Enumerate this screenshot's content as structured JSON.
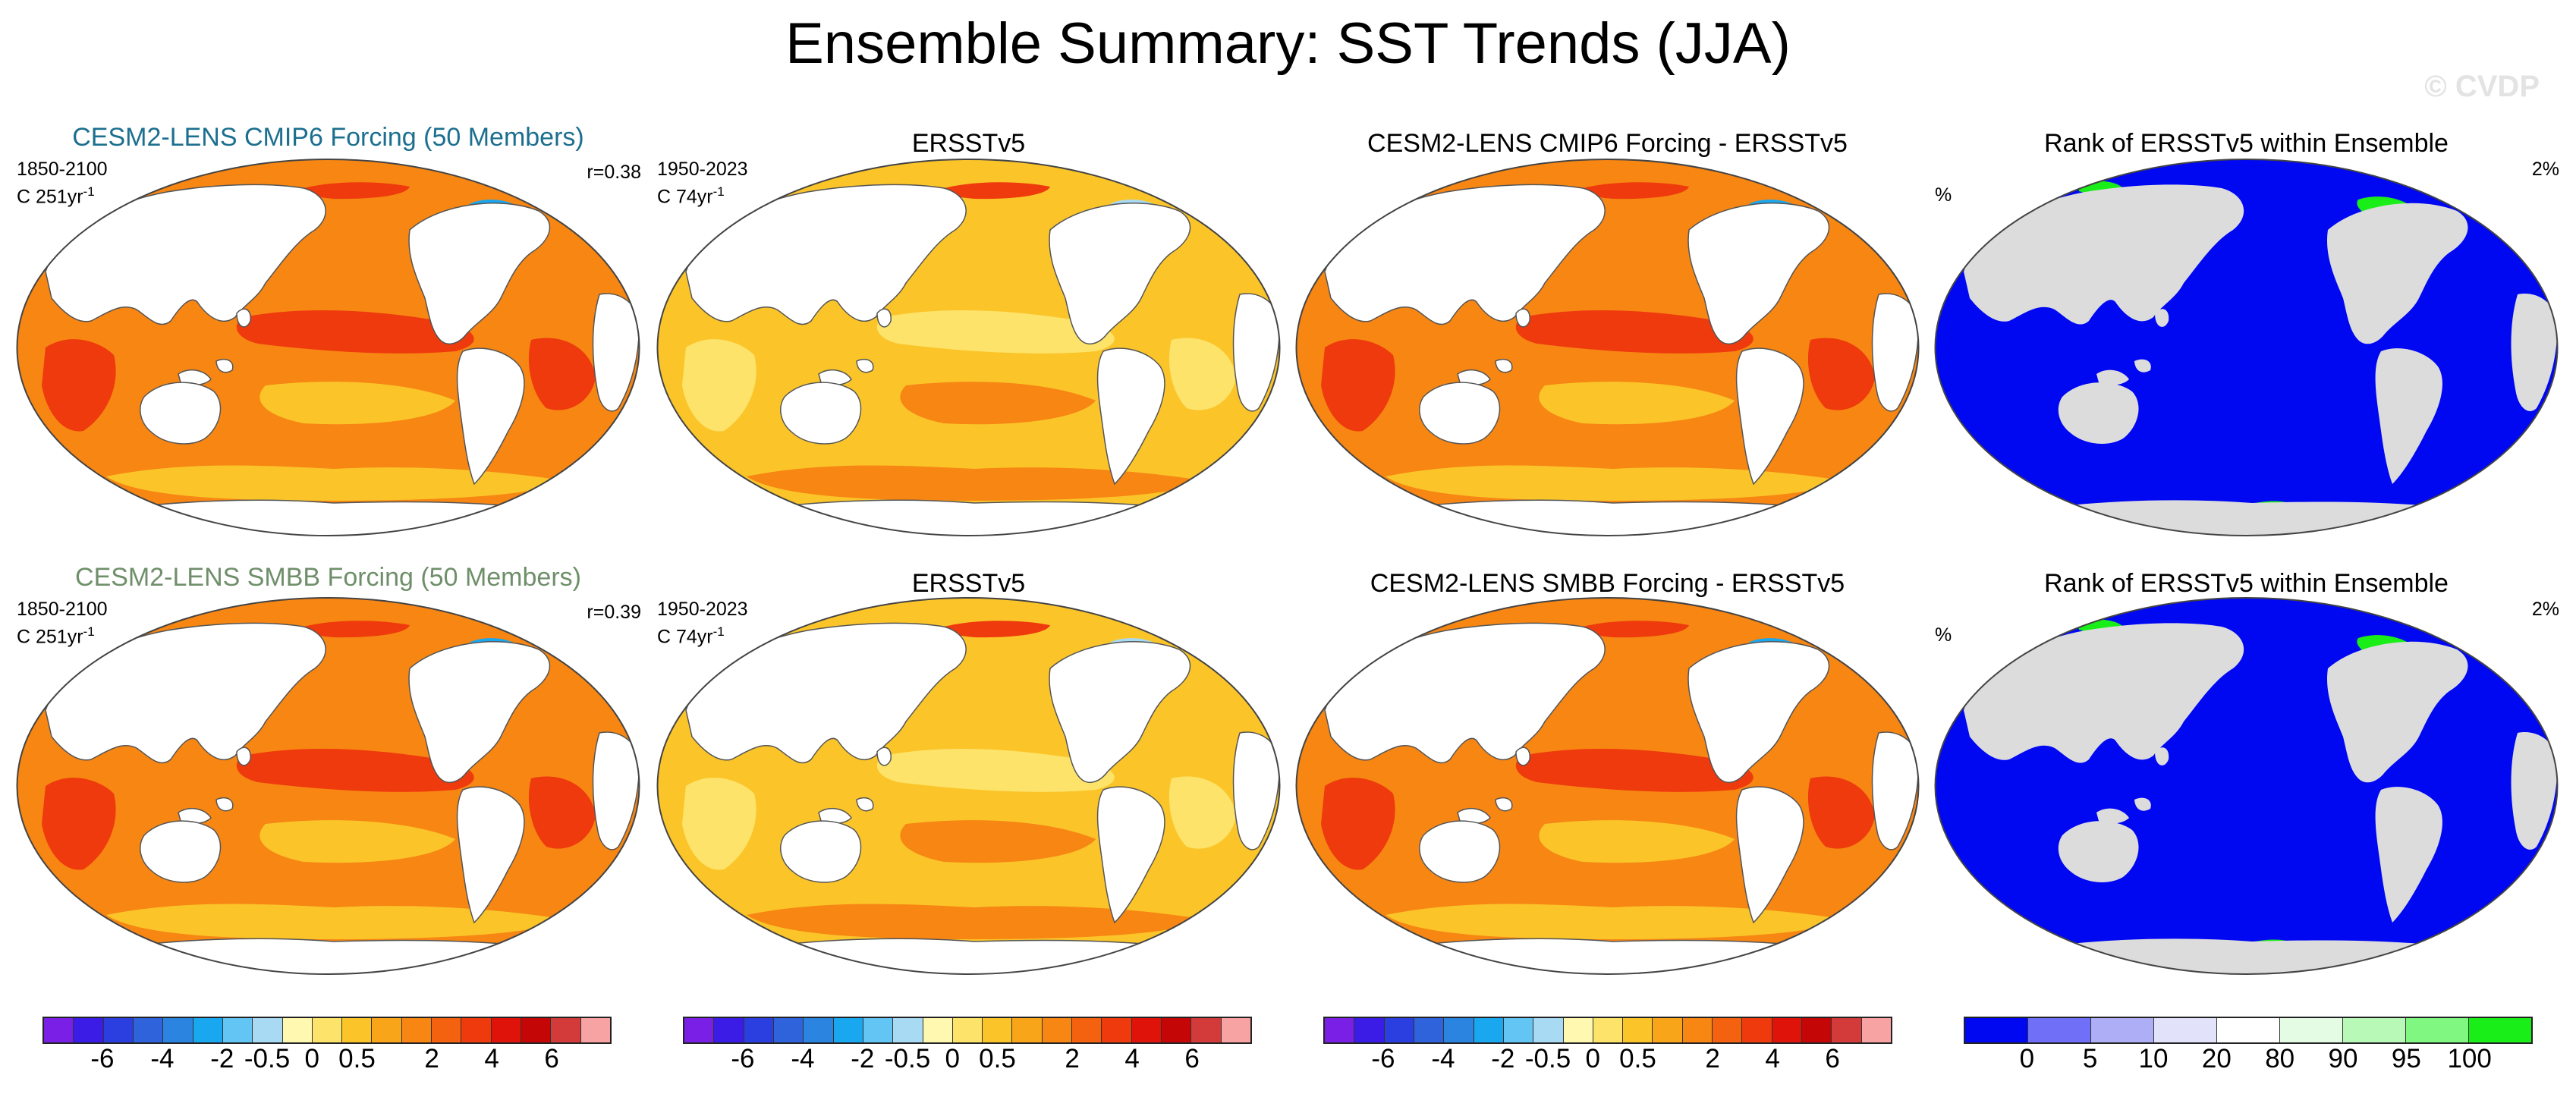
{
  "figure": {
    "title": "Ensemble Summary: SST Trends (JJA)",
    "watermark": "© CVDP"
  },
  "rows": [
    {
      "panels": [
        {
          "title": "CESM2-LENS CMIP6 Forcing (50 Members)",
          "title_color": "#1c6f8f",
          "left_text": "1850-2100",
          "sub_text": "C 251yr",
          "sub_sup": "-1",
          "right_text": "r=0.38",
          "kind": "trend_model"
        },
        {
          "title": "ERSSTv5",
          "title_color": "#000000",
          "left_text": "1950-2023",
          "sub_text": "C 74yr",
          "sub_sup": "-1",
          "right_text": "",
          "kind": "trend_obs"
        },
        {
          "title": "CESM2-LENS CMIP6 Forcing - ERSSTv5",
          "title_color": "#000000",
          "left_text": "",
          "sub_text": "",
          "sub_sup": "",
          "right_text": "",
          "kind": "trend_diff"
        },
        {
          "title": "Rank of ERSSTv5 within Ensemble",
          "title_color": "#000000",
          "left_text": "%",
          "sub_text": "",
          "sub_sup": "",
          "right_text": "2%",
          "kind": "rank"
        }
      ]
    },
    {
      "panels": [
        {
          "title": "CESM2-LENS SMBB Forcing (50 Members)",
          "title_color": "#6f8f6a",
          "left_text": "1850-2100",
          "sub_text": "C 251yr",
          "sub_sup": "-1",
          "right_text": "r=0.39",
          "kind": "trend_model"
        },
        {
          "title": "ERSSTv5",
          "title_color": "#000000",
          "left_text": "1950-2023",
          "sub_text": "C 74yr",
          "sub_sup": "-1",
          "right_text": "",
          "kind": "trend_obs"
        },
        {
          "title": "CESM2-LENS SMBB Forcing - ERSSTv5",
          "title_color": "#000000",
          "left_text": "",
          "sub_text": "",
          "sub_sup": "",
          "right_text": "",
          "kind": "trend_diff"
        },
        {
          "title": "Rank of ERSSTv5 within Ensemble",
          "title_color": "#000000",
          "left_text": "%",
          "sub_text": "",
          "sub_sup": "",
          "right_text": "2%",
          "kind": "rank"
        }
      ]
    }
  ],
  "colorbars": {
    "trend": {
      "colors": [
        "#7a1fe6",
        "#3a1ce6",
        "#2b3fe0",
        "#2f63db",
        "#2a84e0",
        "#19a7ef",
        "#62c5f4",
        "#a9daf3",
        "#fff8b0",
        "#fde36a",
        "#fbc52a",
        "#f9a51a",
        "#f78613",
        "#f4610f",
        "#ee3a0c",
        "#e0130a",
        "#c40606",
        "#d33a3a",
        "#f7a3a3"
      ],
      "ticks": [
        "-6",
        "-4",
        "-2",
        "-0.5",
        "0",
        "0.5",
        "2",
        "4",
        "6"
      ]
    },
    "rank": {
      "colors": [
        "#0008f2",
        "#6f6ff7",
        "#aeaef7",
        "#e2e2fb",
        "#ffffff",
        "#e4fbe4",
        "#b8f9b8",
        "#80f780",
        "#19ee19"
      ],
      "ticks": [
        "0",
        "5",
        "10",
        "20",
        "80",
        "90",
        "95",
        "100"
      ]
    }
  },
  "colors": {
    "land_trend": "#ffffff",
    "land_rank": "#dcdcdc",
    "coast": "#555555",
    "trend_dark": "#ee3a0c",
    "trend_mid": "#f78613",
    "trend_light": "#fbc52a",
    "trend_pale": "#fde36a",
    "trend_cool": "#a9daf3",
    "trend_blue": "#19a7ef",
    "rank_blue": "#0008f2",
    "rank_green": "#19ee19"
  }
}
